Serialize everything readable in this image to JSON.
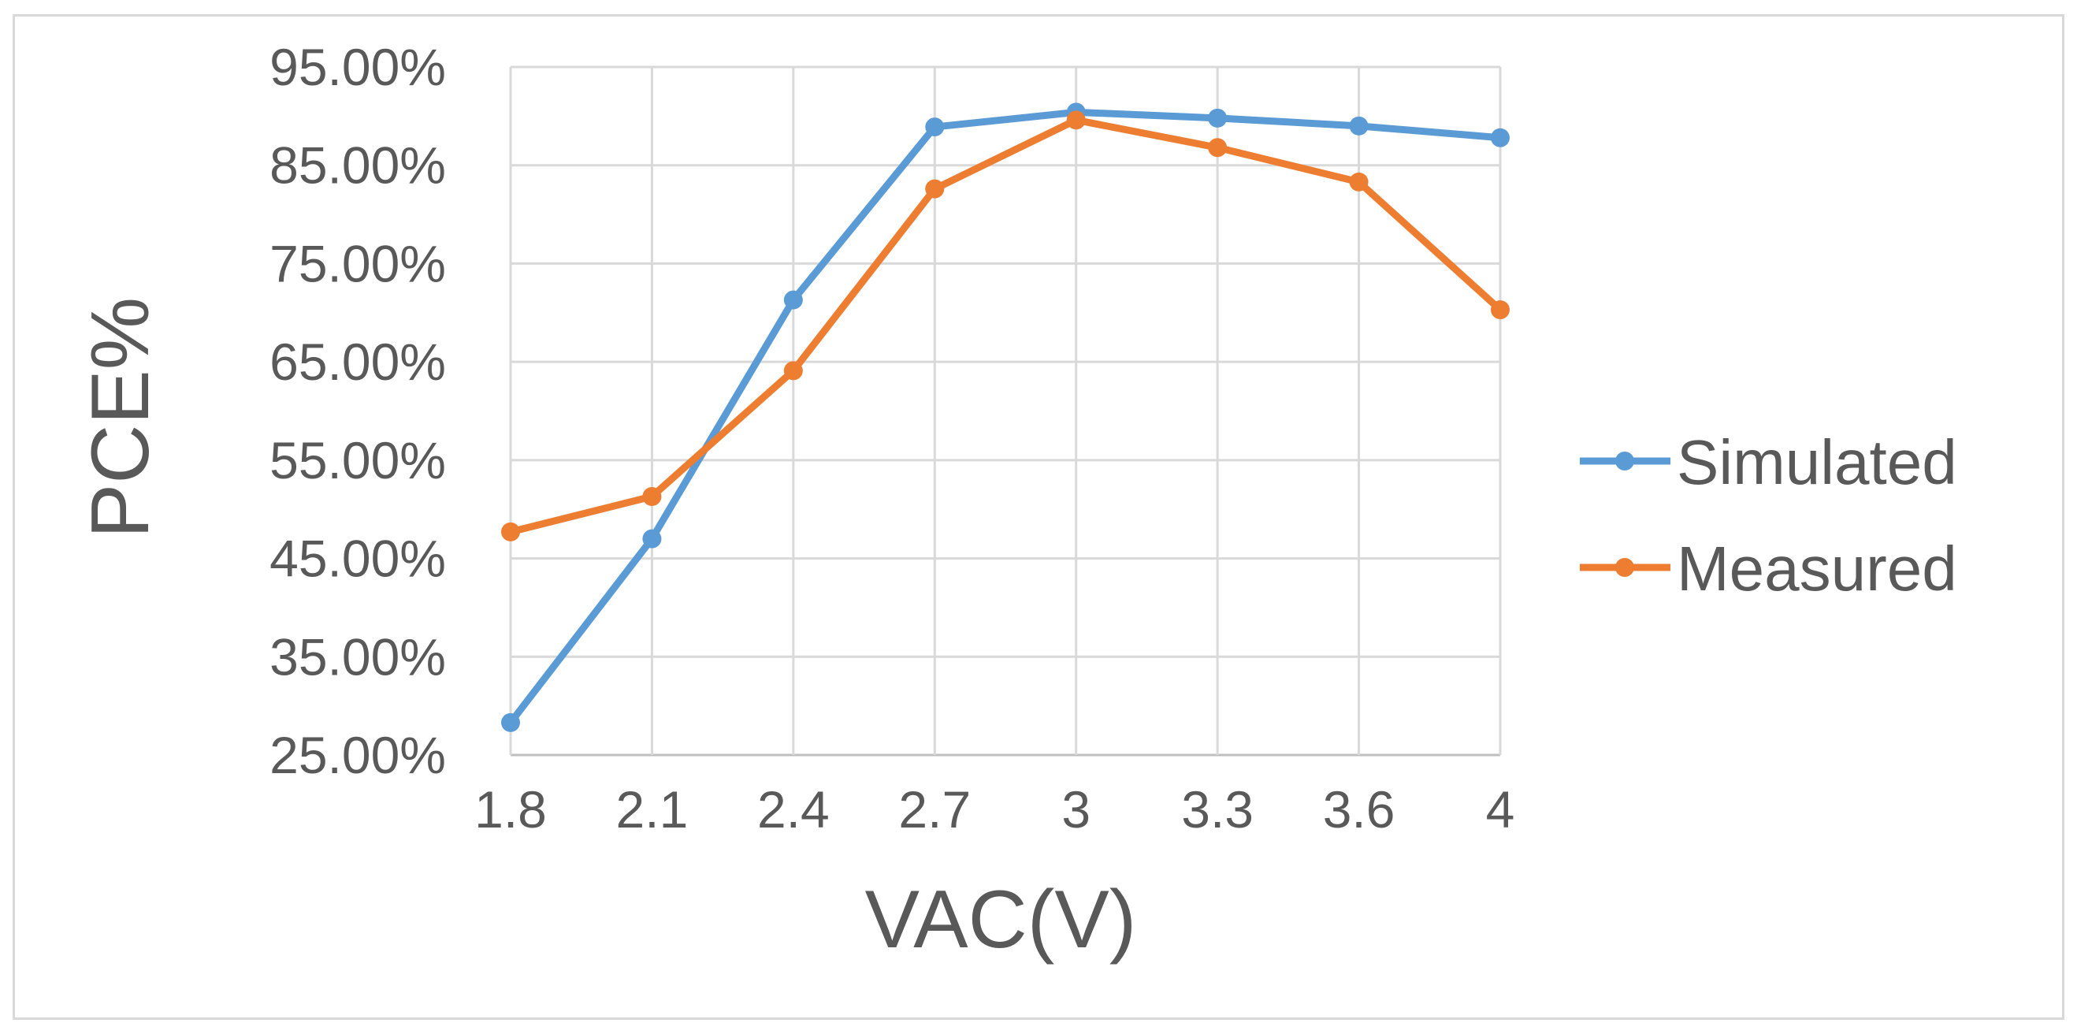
{
  "chart_data": {
    "type": "line",
    "title": "",
    "xlabel": "VAC(V)",
    "ylabel": "PCE%",
    "categories": [
      "1.8",
      "2.1",
      "2.4",
      "2.7",
      "3",
      "3.3",
      "3.6",
      "4"
    ],
    "ylim": [
      25,
      95
    ],
    "yticks": [
      25,
      35,
      45,
      55,
      65,
      75,
      85,
      95
    ],
    "ytick_labels": [
      "25.00%",
      "35.00%",
      "45.00%",
      "55.00%",
      "65.00%",
      "75.00%",
      "85.00%",
      "95.00%"
    ],
    "grid": true,
    "legend_position": "right",
    "series": [
      {
        "name": "Simulated",
        "color": "#5b9bd5",
        "values": [
          28.3,
          47.0,
          71.3,
          88.9,
          90.4,
          89.8,
          89.0,
          87.8
        ]
      },
      {
        "name": "Measured",
        "color": "#ed7d31",
        "values": [
          47.7,
          51.3,
          64.1,
          82.6,
          89.6,
          86.8,
          83.3,
          70.3
        ]
      }
    ]
  }
}
